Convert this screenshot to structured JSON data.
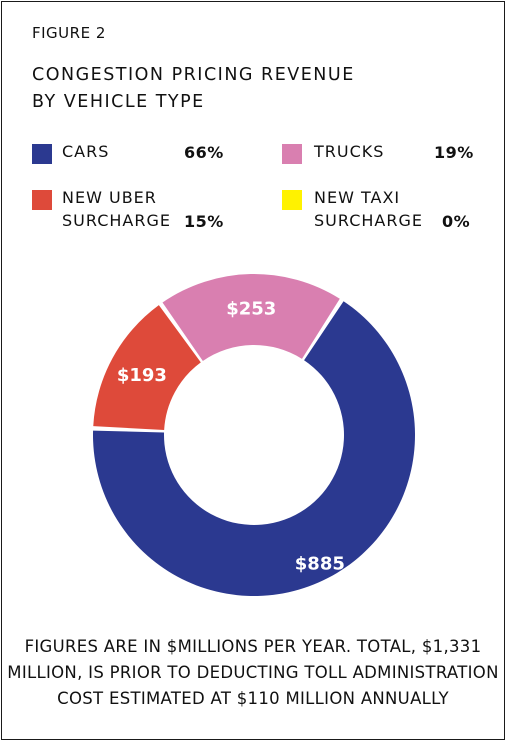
{
  "figure_label": "FIGURE 2",
  "title_lines": [
    "CONGESTION PRICING REVENUE",
    "BY VEHICLE TYPE"
  ],
  "legend": [
    {
      "label_lines": [
        "CARS"
      ],
      "percent": "66%",
      "color": "#2b3990"
    },
    {
      "label_lines": [
        "TRUCKS"
      ],
      "percent": "19%",
      "color": "#d97fb0"
    },
    {
      "label_lines": [
        "NEW UBER",
        "SURCHARGE"
      ],
      "percent": "15%",
      "color": "#de4a3a"
    },
    {
      "label_lines": [
        "NEW TAXI",
        "SURCHARGE"
      ],
      "percent": "0%",
      "color": "#fff200"
    }
  ],
  "chart_data": {
    "type": "pie",
    "variant": "donut",
    "slices": [
      {
        "name": "CARS",
        "value": 885,
        "label": "$885",
        "percent": 66,
        "color": "#2b3990"
      },
      {
        "name": "NEW UBER SURCHARGE",
        "value": 193,
        "label": "$193",
        "percent": 15,
        "color": "#de4a3a"
      },
      {
        "name": "TRUCKS",
        "value": 253,
        "label": "$253",
        "percent": 19,
        "color": "#d97fb0"
      },
      {
        "name": "NEW TAXI SURCHARGE",
        "value": 0,
        "label": "",
        "percent": 0,
        "color": "#fff200"
      }
    ],
    "units": "$ millions per year"
  },
  "footnote_lines": [
    "FIGURES ARE IN $MILLIONS PER YEAR. TOTAL, $1,331",
    "MILLION, IS PRIOR TO DEDUCTING TOLL ADMINISTRATION",
    "COST ESTIMATED AT $110 MILLION ANNUALLY"
  ]
}
